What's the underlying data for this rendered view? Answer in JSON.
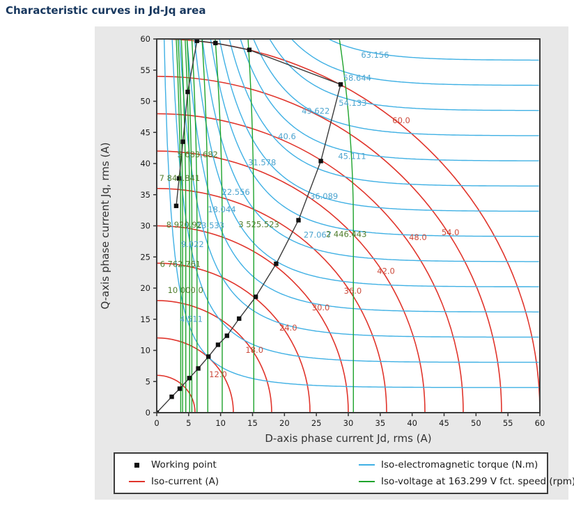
{
  "page": {
    "title": "Characteristic curves in Jd-Jq area"
  },
  "colors": {
    "title": "#17375e",
    "panel_bg": "#e8e8e8",
    "plot_bg": "#ffffff",
    "plot_border": "#3c3c3c",
    "tick_text": "#1a1a1a",
    "axis_title": "#333333",
    "iso_current": "#e0342b",
    "iso_torque": "#3fb0e4",
    "iso_voltage": "#1ea32c",
    "label_current": "#cc4b3c",
    "label_torque": "#4da4cf",
    "label_voltage": "#527f2f",
    "trajectory": "#3a3a3a",
    "working_point": "#111111"
  },
  "legend": {
    "items": [
      {
        "label": "Working point",
        "marker": "square"
      },
      {
        "label": "Iso-current (A)",
        "marker": "red-line"
      },
      {
        "label": "Iso-electromagnetic torque (N.m)",
        "marker": "blue-line"
      },
      {
        "label": "Iso-voltage at 163.299 V fct. speed (rpm)",
        "marker": "green-line"
      }
    ]
  },
  "chart_data": {
    "type": "line",
    "title": "Characteristic curves in Jd-Jq area",
    "xlabel": "D-axis phase current Jd, rms (A)",
    "ylabel": "Q-axis phase current Jq, rms (A)",
    "xlim": [
      0,
      60
    ],
    "ylim": [
      0,
      60
    ],
    "xticks": [
      0,
      5,
      10,
      15,
      20,
      25,
      30,
      35,
      40,
      45,
      50,
      55,
      60
    ],
    "yticks": [
      0,
      5,
      10,
      15,
      20,
      25,
      30,
      35,
      40,
      45,
      50,
      55,
      60
    ],
    "grid": false,
    "legend_position": "bottom",
    "working_point_trajectory": {
      "points": [
        [
          0,
          0
        ],
        [
          2.35,
          2.55
        ],
        [
          3.6,
          3.85
        ],
        [
          5.1,
          5.55
        ],
        [
          6.5,
          7.1
        ],
        [
          8.1,
          9.0
        ],
        [
          9.6,
          10.9
        ],
        [
          11.0,
          12.35
        ],
        [
          12.9,
          15.1
        ],
        [
          15.5,
          18.6
        ],
        [
          18.7,
          23.9
        ],
        [
          22.2,
          30.9
        ],
        [
          25.7,
          40.4
        ],
        [
          28.8,
          52.7
        ],
        [
          14.5,
          58.25
        ],
        [
          9.2,
          59.35
        ],
        [
          6.3,
          59.7
        ],
        [
          4.85,
          51.5
        ],
        [
          4.1,
          43.5
        ],
        [
          3.5,
          37.6
        ],
        [
          3.05,
          33.2
        ]
      ]
    },
    "iso_current_circles": {
      "unit": "A",
      "radii": [
        6,
        12,
        18,
        24,
        30,
        36,
        42,
        48,
        54,
        60
      ],
      "labels": [
        {
          "text": "12.0",
          "x": 8.2,
          "y": 5.7
        },
        {
          "text": "18.0",
          "x": 13.9,
          "y": 9.6
        },
        {
          "text": "24.0",
          "x": 19.2,
          "y": 13.2
        },
        {
          "text": "30.0",
          "x": 24.3,
          "y": 16.4
        },
        {
          "text": "36.0",
          "x": 29.3,
          "y": 19.1
        },
        {
          "text": "42.0",
          "x": 34.5,
          "y": 22.3
        },
        {
          "text": "48.0",
          "x": 39.5,
          "y": 27.7
        },
        {
          "text": "54.0",
          "x": 44.6,
          "y": 28.5
        },
        {
          "text": "60.0",
          "x": 36.9,
          "y": 46.5
        }
      ]
    },
    "iso_torque_curves": {
      "unit": "N.m",
      "values": [
        4.511,
        9.022,
        13.533,
        18.044,
        22.556,
        27.067,
        31.578,
        36.089,
        40.6,
        45.111,
        49.622,
        54.133,
        58.644,
        63.156
      ],
      "shape_model": {
        "scale": 1.116,
        "x_offset": 0.6,
        "tau": 12.6,
        "power": 1.35
      },
      "labels": [
        {
          "text": "4.511",
          "x": 3.6,
          "y": 14.6
        },
        {
          "text": "9.022",
          "x": 3.8,
          "y": 26.6
        },
        {
          "text": "13.533",
          "x": 6.2,
          "y": 29.6
        },
        {
          "text": "18.044",
          "x": 8.0,
          "y": 32.2
        },
        {
          "text": "22.556",
          "x": 10.2,
          "y": 35.0
        },
        {
          "text": "27.067",
          "x": 23.0,
          "y": 28.1
        },
        {
          "text": "31.578",
          "x": 14.3,
          "y": 39.7
        },
        {
          "text": "36.089",
          "x": 24.0,
          "y": 34.3
        },
        {
          "text": "40.6",
          "x": 19.0,
          "y": 43.9
        },
        {
          "text": "45.111",
          "x": 28.4,
          "y": 40.7
        },
        {
          "text": "49.622",
          "x": 22.7,
          "y": 48.0
        },
        {
          "text": "54.133",
          "x": 28.5,
          "y": 49.3
        },
        {
          "text": "58.644",
          "x": 29.2,
          "y": 53.3
        },
        {
          "text": "63.156",
          "x": 32.0,
          "y": 57.0
        }
      ]
    },
    "iso_voltage_lines": {
      "unit": "rpm",
      "voltage_reference": "163.299 V",
      "lines": [
        {
          "x_bottom": 3.75,
          "lean": 0.7
        },
        {
          "x_bottom": 4.05,
          "lean": 0.7
        },
        {
          "x_bottom": 4.55,
          "lean": 0.7
        },
        {
          "x_bottom": 5.15,
          "lean": 0.7
        },
        {
          "x_bottom": 5.5,
          "lean": 0.75
        },
        {
          "x_bottom": 6.3,
          "lean": 0.8
        },
        {
          "x_bottom": 8.0,
          "lean": 0.9
        },
        {
          "x_bottom": 10.25,
          "lean": 1.1
        },
        {
          "x_bottom": 15.2,
          "lean": 0.9
        },
        {
          "x_bottom": 30.8,
          "lean": 2.2
        }
      ],
      "labels": [
        {
          "text": "10 000.0",
          "x": 1.7,
          "y": 19.2
        },
        {
          "text": "8 920.92",
          "x": 1.5,
          "y": 29.7
        },
        {
          "text": "7 841.841",
          "x": 0.4,
          "y": 37.2
        },
        {
          "text": "6 762.761",
          "x": 0.5,
          "y": 23.4
        },
        {
          "text": "5 683.682",
          "x": 3.2,
          "y": 41.0
        },
        {
          "text": "3 525.523",
          "x": 12.8,
          "y": 29.8
        },
        {
          "text": "2 446.443",
          "x": 26.5,
          "y": 28.2
        }
      ]
    }
  }
}
